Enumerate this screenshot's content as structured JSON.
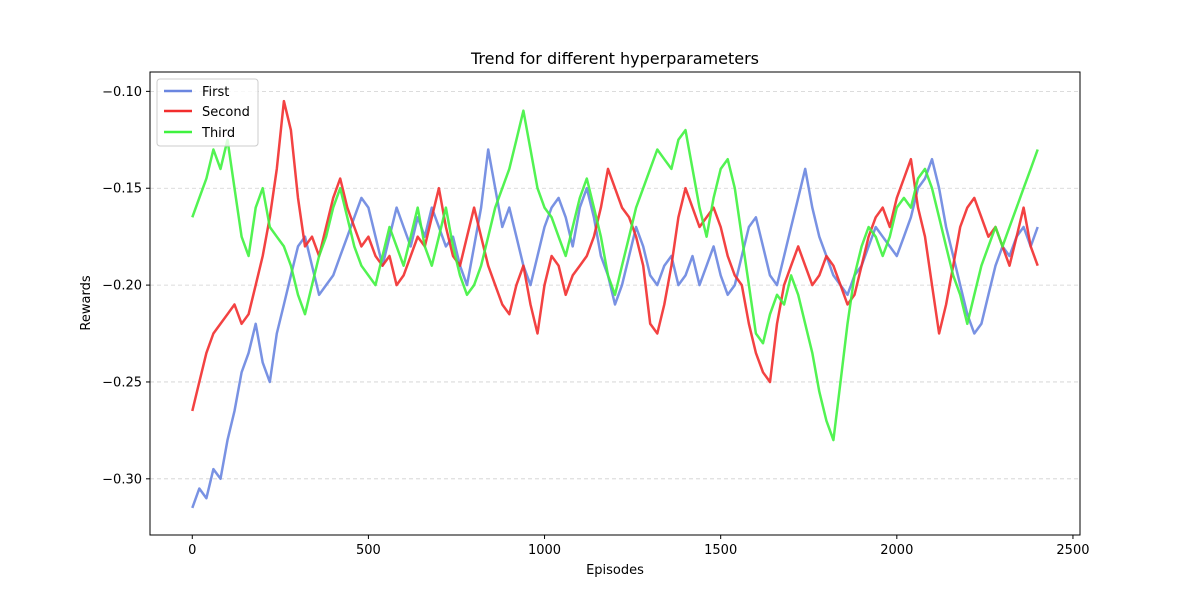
{
  "chart_data": {
    "type": "line",
    "title": "Trend for different hyperparameters",
    "xlabel": "Episodes",
    "ylabel": "Rewards",
    "xlim": [
      -120,
      2520
    ],
    "ylim": [
      -0.329,
      -0.09
    ],
    "xticks": [
      0,
      500,
      1000,
      1500,
      2000,
      2500
    ],
    "xtick_labels": [
      "0",
      "500",
      "1000",
      "1500",
      "2000",
      "2500"
    ],
    "yticks": [
      -0.3,
      -0.25,
      -0.2,
      -0.15,
      -0.1
    ],
    "ytick_labels": [
      "−0.30",
      "−0.25",
      "−0.20",
      "−0.15",
      "−0.10"
    ],
    "grid": "horizontal dashed",
    "legend_position": "top-left",
    "series": [
      {
        "name": "First",
        "color": "#6a86e0",
        "x": [
          0,
          20,
          40,
          60,
          80,
          100,
          120,
          140,
          160,
          180,
          200,
          220,
          240,
          260,
          280,
          300,
          320,
          340,
          360,
          380,
          400,
          420,
          440,
          460,
          480,
          500,
          520,
          540,
          560,
          580,
          600,
          620,
          640,
          660,
          680,
          700,
          720,
          740,
          760,
          780,
          800,
          820,
          840,
          860,
          880,
          900,
          920,
          940,
          960,
          980,
          1000,
          1020,
          1040,
          1060,
          1080,
          1100,
          1120,
          1140,
          1160,
          1180,
          1200,
          1220,
          1240,
          1260,
          1280,
          1300,
          1320,
          1340,
          1360,
          1380,
          1400,
          1420,
          1440,
          1460,
          1480,
          1500,
          1520,
          1540,
          1560,
          1580,
          1600,
          1620,
          1640,
          1660,
          1680,
          1700,
          1720,
          1740,
          1760,
          1780,
          1800,
          1820,
          1840,
          1860,
          1880,
          1900,
          1920,
          1940,
          1960,
          1980,
          2000,
          2020,
          2040,
          2060,
          2080,
          2100,
          2120,
          2140,
          2160,
          2180,
          2200,
          2220,
          2240,
          2260,
          2280,
          2300,
          2320,
          2340,
          2360,
          2380,
          2400
        ],
        "values": [
          -0.315,
          -0.305,
          -0.31,
          -0.295,
          -0.3,
          -0.28,
          -0.265,
          -0.245,
          -0.235,
          -0.22,
          -0.24,
          -0.25,
          -0.225,
          -0.21,
          -0.195,
          -0.18,
          -0.175,
          -0.19,
          -0.205,
          -0.2,
          -0.195,
          -0.185,
          -0.175,
          -0.165,
          -0.155,
          -0.16,
          -0.175,
          -0.19,
          -0.175,
          -0.16,
          -0.17,
          -0.18,
          -0.165,
          -0.175,
          -0.16,
          -0.17,
          -0.18,
          -0.175,
          -0.19,
          -0.2,
          -0.18,
          -0.16,
          -0.13,
          -0.15,
          -0.17,
          -0.16,
          -0.175,
          -0.19,
          -0.2,
          -0.185,
          -0.17,
          -0.16,
          -0.155,
          -0.165,
          -0.18,
          -0.16,
          -0.15,
          -0.165,
          -0.185,
          -0.195,
          -0.21,
          -0.2,
          -0.185,
          -0.17,
          -0.18,
          -0.195,
          -0.2,
          -0.19,
          -0.185,
          -0.2,
          -0.195,
          -0.185,
          -0.2,
          -0.19,
          -0.18,
          -0.195,
          -0.205,
          -0.2,
          -0.185,
          -0.17,
          -0.165,
          -0.18,
          -0.195,
          -0.2,
          -0.185,
          -0.17,
          -0.155,
          -0.14,
          -0.16,
          -0.175,
          -0.185,
          -0.195,
          -0.2,
          -0.205,
          -0.195,
          -0.19,
          -0.18,
          -0.17,
          -0.175,
          -0.18,
          -0.185,
          -0.175,
          -0.165,
          -0.15,
          -0.145,
          -0.135,
          -0.15,
          -0.17,
          -0.185,
          -0.2,
          -0.215,
          -0.225,
          -0.22,
          -0.205,
          -0.19,
          -0.18,
          -0.185,
          -0.175,
          -0.17,
          -0.18,
          -0.17
        ]
      },
      {
        "name": "Second",
        "color": "#f22d2d",
        "x": [
          0,
          20,
          40,
          60,
          80,
          100,
          120,
          140,
          160,
          180,
          200,
          220,
          240,
          260,
          280,
          300,
          320,
          340,
          360,
          380,
          400,
          420,
          440,
          460,
          480,
          500,
          520,
          540,
          560,
          580,
          600,
          620,
          640,
          660,
          680,
          700,
          720,
          740,
          760,
          780,
          800,
          820,
          840,
          860,
          880,
          900,
          920,
          940,
          960,
          980,
          1000,
          1020,
          1040,
          1060,
          1080,
          1100,
          1120,
          1140,
          1160,
          1180,
          1200,
          1220,
          1240,
          1260,
          1280,
          1300,
          1320,
          1340,
          1360,
          1380,
          1400,
          1420,
          1440,
          1460,
          1480,
          1500,
          1520,
          1540,
          1560,
          1580,
          1600,
          1620,
          1640,
          1660,
          1680,
          1700,
          1720,
          1740,
          1760,
          1780,
          1800,
          1820,
          1840,
          1860,
          1880,
          1900,
          1920,
          1940,
          1960,
          1980,
          2000,
          2020,
          2040,
          2060,
          2080,
          2100,
          2120,
          2140,
          2160,
          2180,
          2200,
          2220,
          2240,
          2260,
          2280,
          2300,
          2320,
          2340,
          2360,
          2380,
          2400
        ],
        "values": [
          -0.265,
          -0.25,
          -0.235,
          -0.225,
          -0.22,
          -0.215,
          -0.21,
          -0.22,
          -0.215,
          -0.2,
          -0.185,
          -0.165,
          -0.14,
          -0.105,
          -0.12,
          -0.155,
          -0.18,
          -0.175,
          -0.185,
          -0.17,
          -0.155,
          -0.145,
          -0.16,
          -0.17,
          -0.18,
          -0.175,
          -0.185,
          -0.19,
          -0.185,
          -0.2,
          -0.195,
          -0.185,
          -0.175,
          -0.18,
          -0.165,
          -0.15,
          -0.17,
          -0.185,
          -0.19,
          -0.175,
          -0.16,
          -0.175,
          -0.19,
          -0.2,
          -0.21,
          -0.215,
          -0.2,
          -0.19,
          -0.21,
          -0.225,
          -0.2,
          -0.185,
          -0.19,
          -0.205,
          -0.195,
          -0.19,
          -0.185,
          -0.175,
          -0.16,
          -0.14,
          -0.15,
          -0.16,
          -0.165,
          -0.175,
          -0.19,
          -0.22,
          -0.225,
          -0.21,
          -0.19,
          -0.165,
          -0.15,
          -0.16,
          -0.17,
          -0.165,
          -0.16,
          -0.17,
          -0.185,
          -0.195,
          -0.2,
          -0.22,
          -0.235,
          -0.245,
          -0.25,
          -0.22,
          -0.2,
          -0.19,
          -0.18,
          -0.19,
          -0.2,
          -0.195,
          -0.185,
          -0.19,
          -0.2,
          -0.21,
          -0.205,
          -0.19,
          -0.175,
          -0.165,
          -0.16,
          -0.17,
          -0.155,
          -0.145,
          -0.135,
          -0.16,
          -0.175,
          -0.2,
          -0.225,
          -0.21,
          -0.19,
          -0.17,
          -0.16,
          -0.155,
          -0.165,
          -0.175,
          -0.17,
          -0.18,
          -0.19,
          -0.175,
          -0.16,
          -0.18,
          -0.19
        ]
      },
      {
        "name": "Third",
        "color": "#3ff23f",
        "x": [
          0,
          20,
          40,
          60,
          80,
          100,
          120,
          140,
          160,
          180,
          200,
          220,
          240,
          260,
          280,
          300,
          320,
          340,
          360,
          380,
          400,
          420,
          440,
          460,
          480,
          500,
          520,
          540,
          560,
          580,
          600,
          620,
          640,
          660,
          680,
          700,
          720,
          740,
          760,
          780,
          800,
          820,
          840,
          860,
          880,
          900,
          920,
          940,
          960,
          980,
          1000,
          1020,
          1040,
          1060,
          1080,
          1100,
          1120,
          1140,
          1160,
          1180,
          1200,
          1220,
          1240,
          1260,
          1280,
          1300,
          1320,
          1340,
          1360,
          1380,
          1400,
          1420,
          1440,
          1460,
          1480,
          1500,
          1520,
          1540,
          1560,
          1580,
          1600,
          1620,
          1640,
          1660,
          1680,
          1700,
          1720,
          1740,
          1760,
          1780,
          1800,
          1820,
          1840,
          1860,
          1880,
          1900,
          1920,
          1940,
          1960,
          1980,
          2000,
          2020,
          2040,
          2060,
          2080,
          2100,
          2120,
          2140,
          2160,
          2180,
          2200,
          2220,
          2240,
          2260,
          2280,
          2300,
          2320,
          2340,
          2360,
          2380,
          2400
        ],
        "values": [
          -0.165,
          -0.155,
          -0.145,
          -0.13,
          -0.14,
          -0.125,
          -0.15,
          -0.175,
          -0.185,
          -0.16,
          -0.15,
          -0.17,
          -0.175,
          -0.18,
          -0.19,
          -0.205,
          -0.215,
          -0.2,
          -0.185,
          -0.175,
          -0.16,
          -0.15,
          -0.165,
          -0.18,
          -0.19,
          -0.195,
          -0.2,
          -0.185,
          -0.17,
          -0.18,
          -0.19,
          -0.175,
          -0.16,
          -0.18,
          -0.19,
          -0.175,
          -0.16,
          -0.18,
          -0.195,
          -0.205,
          -0.2,
          -0.19,
          -0.175,
          -0.16,
          -0.15,
          -0.14,
          -0.125,
          -0.11,
          -0.13,
          -0.15,
          -0.16,
          -0.165,
          -0.175,
          -0.185,
          -0.17,
          -0.155,
          -0.145,
          -0.16,
          -0.175,
          -0.195,
          -0.205,
          -0.19,
          -0.175,
          -0.16,
          -0.15,
          -0.14,
          -0.13,
          -0.135,
          -0.14,
          -0.125,
          -0.12,
          -0.14,
          -0.16,
          -0.175,
          -0.155,
          -0.14,
          -0.135,
          -0.15,
          -0.175,
          -0.2,
          -0.225,
          -0.23,
          -0.215,
          -0.205,
          -0.21,
          -0.195,
          -0.205,
          -0.22,
          -0.235,
          -0.255,
          -0.27,
          -0.28,
          -0.25,
          -0.22,
          -0.195,
          -0.18,
          -0.17,
          -0.175,
          -0.185,
          -0.175,
          -0.16,
          -0.155,
          -0.16,
          -0.145,
          -0.14,
          -0.15,
          -0.165,
          -0.18,
          -0.195,
          -0.205,
          -0.22,
          -0.205,
          -0.19,
          -0.18,
          -0.17,
          -0.18,
          -0.17,
          -0.16,
          -0.15,
          -0.14,
          -0.13
        ]
      }
    ]
  }
}
